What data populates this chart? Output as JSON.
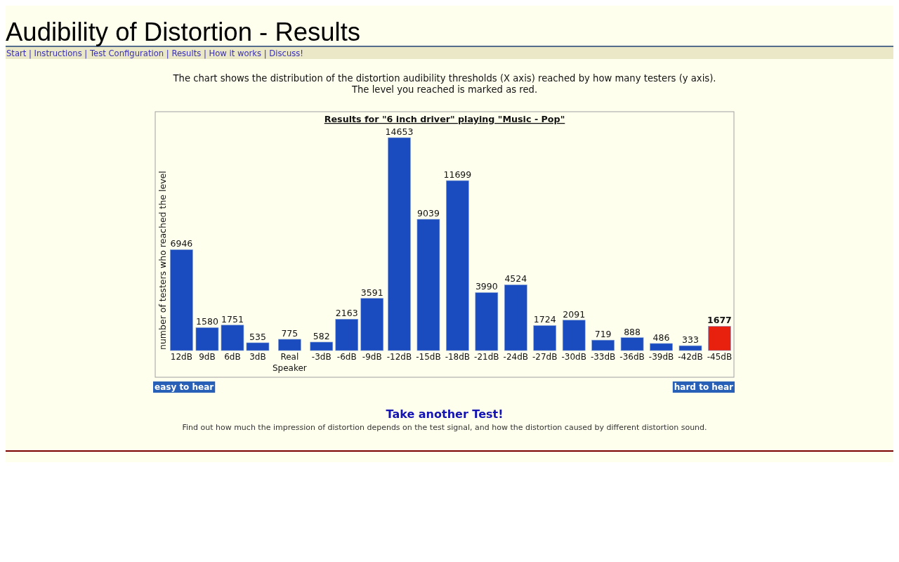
{
  "chart_data": {
    "type": "bar",
    "title": "Results for \"6 inch driver\" playing \"Music - Pop\"",
    "ylabel": "number of testers who reached the level",
    "categories": [
      "12dB",
      "9dB",
      "6dB",
      "3dB",
      "Real Speaker",
      "-3dB",
      "-6dB",
      "-9dB",
      "-12dB",
      "-15dB",
      "-18dB",
      "-21dB",
      "-24dB",
      "-27dB",
      "-30dB",
      "-33dB",
      "-36dB",
      "-39dB",
      "-42dB",
      "-45dB"
    ],
    "values": [
      6946,
      1580,
      1751,
      535,
      775,
      582,
      2163,
      3591,
      14653,
      9039,
      11699,
      3990,
      4524,
      1724,
      2091,
      719,
      888,
      486,
      333,
      1677
    ],
    "colors": [
      "#1a4cc0",
      "#1a4cc0",
      "#1a4cc0",
      "#1a4cc0",
      "#1a4cc0",
      "#1a4cc0",
      "#1a4cc0",
      "#1a4cc0",
      "#1a4cc0",
      "#1a4cc0",
      "#1a4cc0",
      "#1a4cc0",
      "#1a4cc0",
      "#1a4cc0",
      "#1a4cc0",
      "#1a4cc0",
      "#1a4cc0",
      "#1a4cc0",
      "#1a4cc0",
      "#e8200e"
    ],
    "data_labels": true,
    "annotations": [
      "Audibility of Distortion - Results",
      "Start | Instructions | Test Configuration | Results | How it works | Discuss!",
      "The chart shows the distribution of the distortion audibility thresholds (X axis) reached by how many testers (y axis).",
      "The level you reached is marked as red.",
      "easy to hear",
      "hard to hear",
      "Take another Test!",
      "Find out how much the impression of distortion depends on the test signal, and how the distortion caused by different distortion sound."
    ]
  }
}
